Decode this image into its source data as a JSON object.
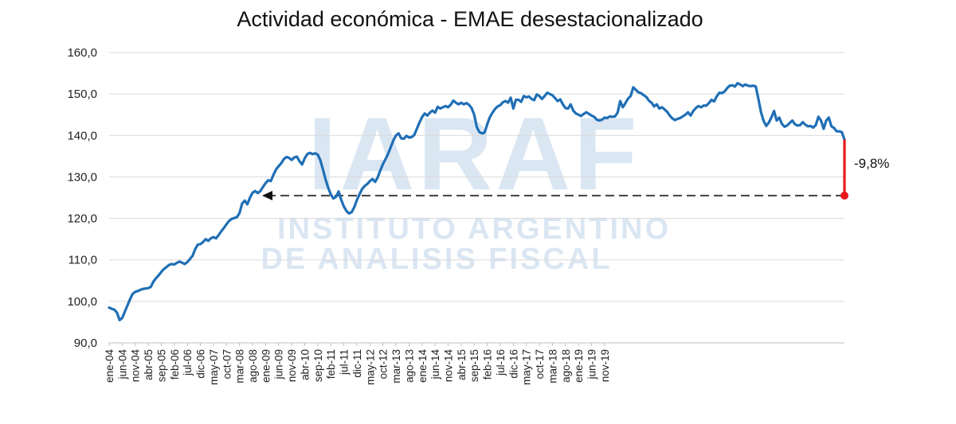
{
  "watermark": {
    "logo_text": "IARAF",
    "line1": "INSTITUTO ARGENTINO",
    "line2": "DE ANALISIS FISCAL"
  },
  "colors": {
    "series": "#1f6fb5",
    "drop": "#e8191c",
    "grid": "#d9d9d9",
    "reference": "#404040"
  },
  "chart_data": {
    "type": "line",
    "title": "Actividad económica - EMAE desestacionalizado",
    "xlabel": "",
    "ylabel": "",
    "ylim": [
      90,
      160
    ],
    "yticks": [
      90,
      100,
      110,
      120,
      130,
      140,
      150,
      160
    ],
    "ytick_labels": [
      "90,0",
      "100,0",
      "110,0",
      "120,0",
      "130,0",
      "140,0",
      "150,0",
      "160,0"
    ],
    "grid": "horizontal",
    "x_start": "ene-04",
    "x_end": "abr-20",
    "xtick_labels": [
      "ene-04",
      "jun-04",
      "nov-04",
      "abr-05",
      "sep-05",
      "feb-06",
      "jul-06",
      "dic-06",
      "may-07",
      "oct-07",
      "mar-08",
      "ago-08",
      "ene-09",
      "jun-09",
      "nov-09",
      "abr-10",
      "sep-10",
      "feb-11",
      "jul-11",
      "dic-11",
      "may-12",
      "oct-12",
      "mar-13",
      "ago-13",
      "ene-14",
      "jun-14",
      "nov-14",
      "abr-15",
      "sep-15",
      "feb-16",
      "jul-16",
      "dic-16",
      "may-17",
      "oct-17",
      "mar-18",
      "ago-18",
      "ene-19",
      "jun-19",
      "nov-19"
    ],
    "series": [
      {
        "values": [
          98.5,
          98.2,
          98.0,
          97.3,
          95.5,
          96.0,
          97.5,
          99.0,
          100.5,
          101.8,
          102.3,
          102.5,
          102.8,
          103.0,
          103.1,
          103.2,
          103.5,
          104.8,
          105.6,
          106.3,
          107.1,
          107.8,
          108.3,
          108.8,
          109.0,
          108.9,
          109.3,
          109.6,
          109.3,
          109.0,
          109.5,
          110.2,
          111.0,
          112.6,
          113.7,
          113.8,
          114.3,
          115.0,
          114.6,
          115.2,
          115.5,
          115.2,
          116.0,
          116.9,
          117.7,
          118.6,
          119.4,
          119.9,
          120.1,
          120.3,
          121.3,
          123.6,
          124.3,
          123.4,
          125.0,
          126.2,
          126.6,
          126.1,
          126.6,
          127.6,
          128.5,
          129.2,
          129.0,
          130.5,
          131.8,
          132.6,
          133.3,
          134.3,
          134.8,
          134.6,
          134.1,
          134.7,
          134.9,
          133.8,
          133.0,
          134.5,
          135.5,
          135.8,
          135.5,
          135.7,
          135.4,
          134.0,
          131.8,
          129.4,
          127.4,
          125.8,
          124.8,
          125.2,
          126.5,
          124.5,
          122.9,
          121.8,
          121.2,
          121.5,
          122.7,
          124.4,
          125.8,
          127.1,
          127.8,
          128.3,
          129.0,
          129.5,
          128.8,
          129.9,
          131.6,
          133.1,
          134.3,
          135.6,
          137.2,
          138.8,
          140.0,
          140.5,
          139.3,
          139.2,
          139.9,
          139.5,
          139.6,
          140.1,
          141.6,
          143.1,
          144.4,
          145.3,
          144.8,
          145.5,
          146.0,
          145.5,
          146.9,
          146.5,
          146.8,
          147.1,
          146.8,
          147.4,
          148.4,
          147.9,
          147.5,
          147.9,
          147.5,
          147.8,
          147.4,
          146.6,
          145.0,
          142.0,
          140.8,
          140.5,
          140.7,
          142.7,
          144.4,
          145.5,
          146.4,
          147.0,
          147.3,
          148.0,
          148.3,
          147.9,
          149.1,
          146.5,
          148.6,
          148.6,
          148.1,
          149.5,
          149.2,
          149.4,
          148.8,
          148.5,
          149.9,
          149.5,
          148.8,
          149.5,
          150.3,
          150.0,
          149.7,
          149.0,
          148.3,
          148.7,
          147.5,
          146.6,
          146.5,
          147.5,
          146.0,
          145.3,
          145.0,
          144.7,
          145.2,
          145.6,
          145.2,
          144.8,
          144.5,
          143.8,
          143.6,
          143.8,
          144.3,
          144.2,
          144.6,
          144.5,
          144.6,
          145.5,
          148.3,
          146.8,
          147.8,
          148.9,
          149.5,
          151.6,
          151.0,
          150.4,
          150.2,
          149.7,
          149.3,
          148.4,
          147.9,
          147.0,
          147.5,
          146.5,
          146.8,
          146.3,
          145.7,
          144.8,
          144.1,
          143.7,
          144.0,
          144.2,
          144.6,
          145.0,
          145.6,
          144.8,
          145.9,
          146.6,
          147.1,
          146.8,
          147.2,
          147.2,
          147.8,
          148.6,
          148.2,
          149.4,
          150.3,
          150.2,
          150.6,
          151.4,
          152.0,
          152.1,
          151.8,
          152.6,
          152.3,
          151.9,
          152.3,
          152.0,
          151.9,
          152.0,
          151.8,
          148.8,
          145.6,
          143.5,
          142.3,
          143.1,
          144.4,
          145.9,
          143.6,
          144.3,
          142.8,
          142.1,
          142.4,
          143.0,
          143.6,
          142.7,
          142.4,
          142.5,
          143.2,
          142.6,
          142.2,
          142.3,
          141.9,
          142.5,
          144.5,
          143.6,
          141.6,
          143.6,
          144.3,
          142.2,
          141.8,
          141.0,
          141.0,
          140.8,
          139.0
        ]
      }
    ],
    "drop_endpoint_value": 125.5,
    "reference_line_value": 125.5,
    "annotations": [
      {
        "text": "-9,8%"
      }
    ]
  }
}
